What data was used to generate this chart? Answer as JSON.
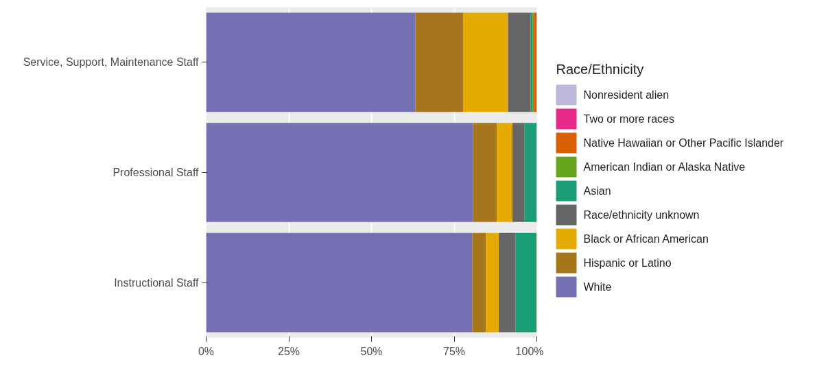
{
  "chart_data": {
    "type": "bar",
    "orientation": "horizontal",
    "stacked": true,
    "legend": "right",
    "legend_title": "Race/Ethnicity",
    "grid": "x",
    "categories": [
      "Service, Support, Maintenance Staff",
      "Professional Staff",
      "Instructional Staff"
    ],
    "xlim": [
      0,
      100
    ],
    "xticks": [
      {
        "value": 0,
        "label": "0%"
      },
      {
        "value": 25,
        "label": "25%"
      },
      {
        "value": 50,
        "label": "50%"
      },
      {
        "value": 75,
        "label": "75%"
      },
      {
        "value": 100,
        "label": "100%"
      }
    ],
    "series": [
      {
        "name": "White",
        "color": "#7570b3",
        "values": [
          63.3,
          80.7,
          80.5
        ]
      },
      {
        "name": "Hispanic or Latino",
        "color": "#a6761d",
        "values": [
          14.5,
          7.2,
          4.1
        ]
      },
      {
        "name": "Black or African American",
        "color": "#e6ab02",
        "values": [
          13.5,
          4.7,
          3.9
        ]
      },
      {
        "name": "Race/ethnicity unknown",
        "color": "#666666",
        "values": [
          6.8,
          3.7,
          5.1
        ]
      },
      {
        "name": "Asian",
        "color": "#1b9e77",
        "values": [
          0.6,
          3.7,
          6.1
        ]
      },
      {
        "name": "American Indian or Alaska Native",
        "color": "#66a61e",
        "values": [
          0.4,
          0,
          0.3
        ]
      },
      {
        "name": "Native Hawaiian or Other Pacific Islander",
        "color": "#d95f02",
        "values": [
          0.9,
          0,
          0
        ]
      },
      {
        "name": "Two or more races",
        "color": "#e7298a",
        "values": [
          0,
          0,
          0
        ]
      },
      {
        "name": "Nonresident alien",
        "color": "#bcb8da",
        "values": [
          0,
          0,
          0
        ]
      }
    ]
  }
}
